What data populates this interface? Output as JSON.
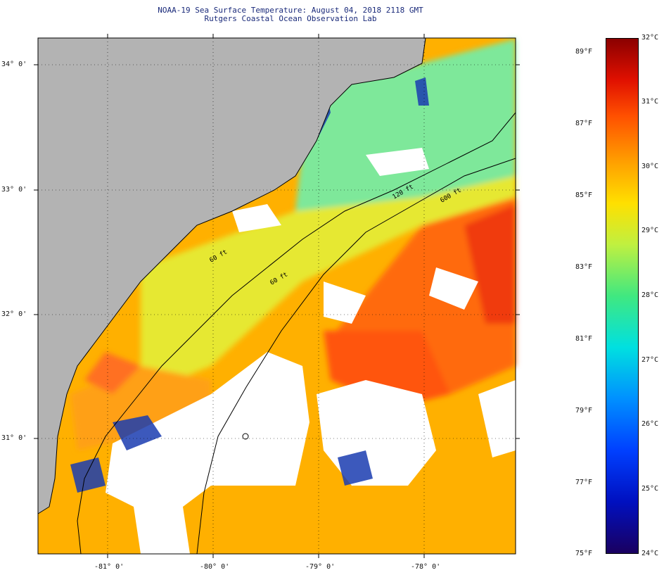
{
  "header": {
    "title": "NOAA-19 Sea Surface Temperature:  August 04, 2018 2118 GMT",
    "subtitle": "Rutgers Coastal Ocean Observation Lab"
  },
  "map": {
    "lat_labels": [
      "34° 0'",
      "33° 0'",
      "32° 0'",
      "31° 0'"
    ],
    "lon_labels": [
      "-81° 0'",
      "-80° 0'",
      "-79° 0'",
      "-78° 0'"
    ],
    "isobath_labels": [
      "120 ft",
      "600 ft",
      "60 ft",
      "60 ft"
    ]
  },
  "colorbar": {
    "fahrenheit_labels": [
      "89°F",
      "87°F",
      "85°F",
      "83°F",
      "81°F",
      "79°F",
      "77°F",
      "75°F"
    ],
    "celsius_labels": [
      "32°C",
      "31°C",
      "30°C",
      "29°C",
      "28°C",
      "27°C",
      "26°C",
      "25°C",
      "24°C"
    ]
  },
  "colors": {
    "land": "#b3b3b3",
    "title": "#1a2a7a"
  }
}
